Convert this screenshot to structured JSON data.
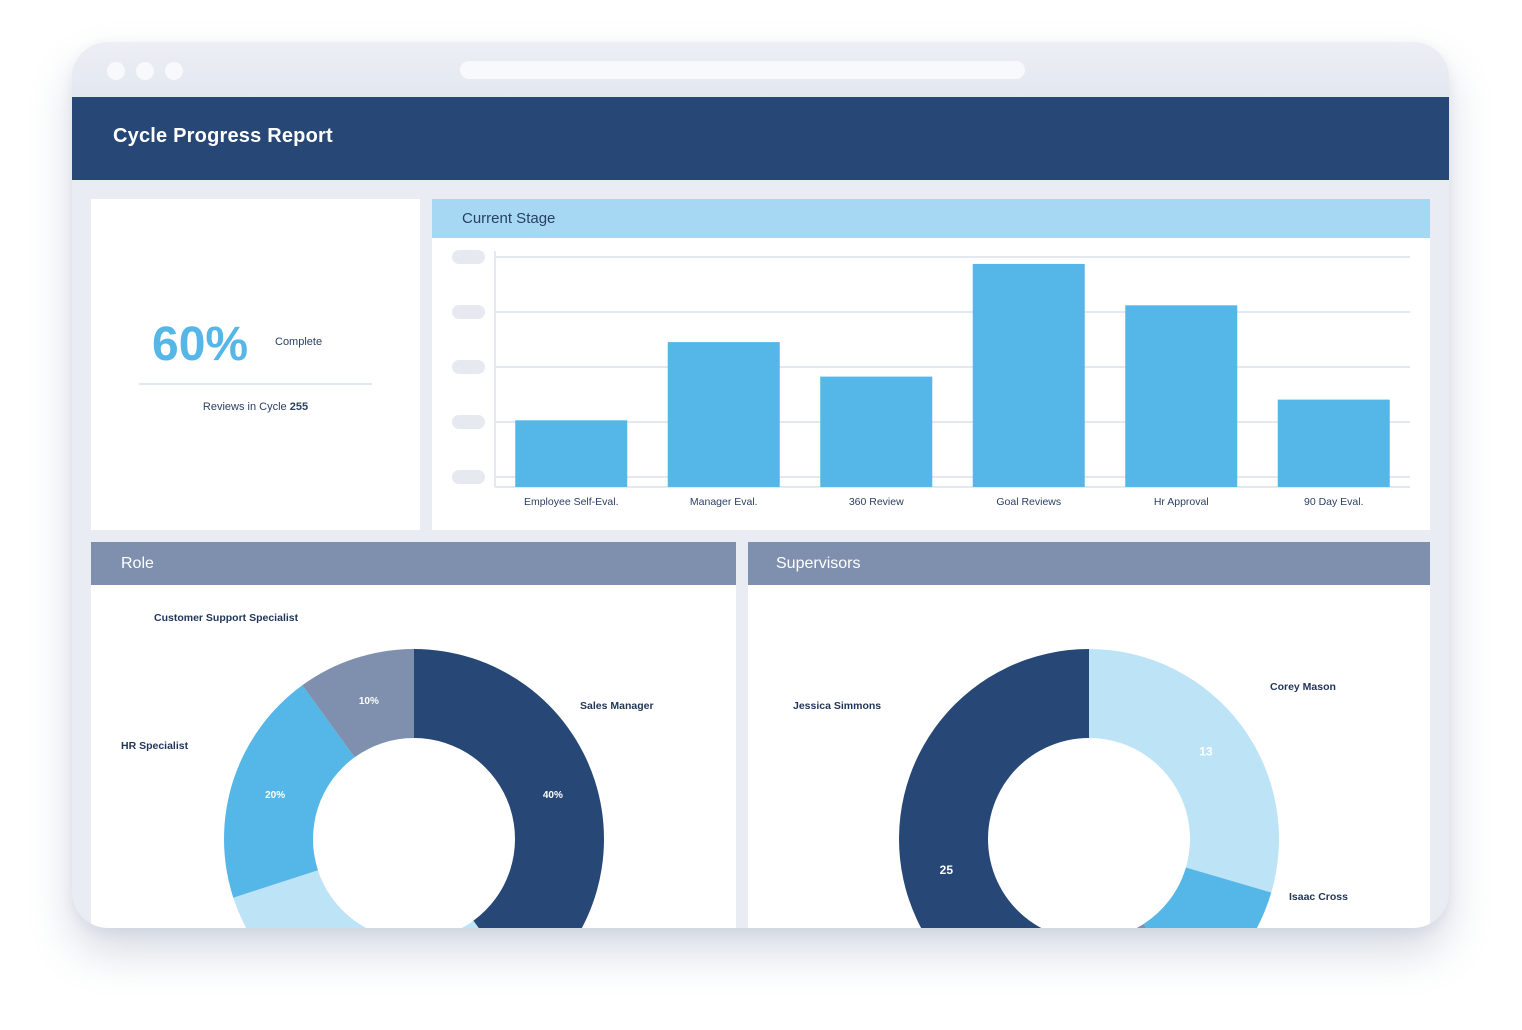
{
  "header": {
    "title": "Cycle Progress Report"
  },
  "summary": {
    "percent": "60%",
    "percent_label": "Complete",
    "reviews_label": "Reviews in Cycle",
    "reviews_count": "255"
  },
  "current_stage": {
    "title": "Current Stage",
    "chart_data": {
      "type": "bar",
      "title": "Current Stage",
      "categories": [
        "Employee Self-Eval.",
        "Manager Eval.",
        "360 Review",
        "Goal Reviews",
        "Hr Approval",
        "90 Day Eval."
      ],
      "values": [
        29,
        63,
        48,
        97,
        79,
        38
      ],
      "ylim": [
        0,
        100
      ],
      "grid": true,
      "color": "#55b6e8"
    }
  },
  "role": {
    "title": "Role",
    "chart_data": {
      "type": "pie",
      "variant": "donut",
      "slices": [
        {
          "label": "Sales Manager",
          "value": 40,
          "value_label": "40%",
          "color": "#274877"
        },
        {
          "label": "Customer Support Specialist",
          "value": 30,
          "value_label": "30%",
          "color": "#bde3f6"
        },
        {
          "label": "HR Specialist",
          "value": 20,
          "value_label": "20%",
          "color": "#55b6e8"
        },
        {
          "label": "",
          "value": 10,
          "value_label": "10%",
          "color": "#7e90ae"
        }
      ]
    }
  },
  "supervisors": {
    "title": "Supervisors",
    "chart_data": {
      "type": "pie",
      "variant": "donut",
      "slices": [
        {
          "label": "Corey Mason",
          "value": 13,
          "value_label": "13",
          "color": "#bde3f6"
        },
        {
          "label": "Isaac Cross",
          "value": 5,
          "value_label": "",
          "color": "#55b6e8"
        },
        {
          "label": "",
          "value": 1,
          "value_label": "",
          "color": "#7e90ae"
        },
        {
          "label": "Jessica Simmons",
          "value": 25,
          "value_label": "25",
          "color": "#274877"
        }
      ]
    }
  },
  "colors": {
    "header": "#274877",
    "accent": "#55b6e8",
    "stage_header": "#a6d8f3",
    "section_header": "#7e90ae",
    "text_dark": "#2b3f63"
  }
}
